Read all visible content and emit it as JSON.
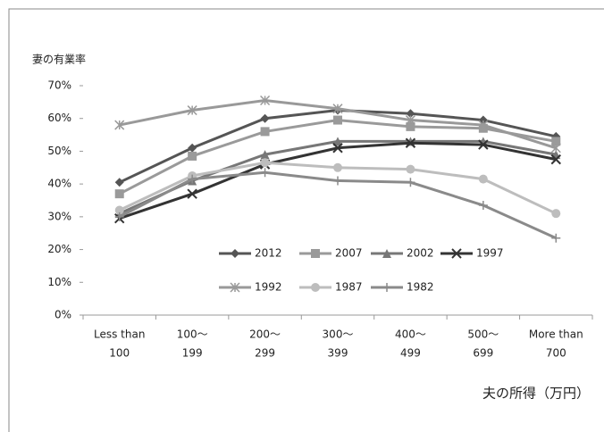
{
  "chart_data": {
    "type": "line",
    "y_label": "妻の有業率",
    "x_label": "夫の所得（万円）",
    "categories": [
      [
        "Less than",
        "100"
      ],
      [
        "100～",
        "199"
      ],
      [
        "200～",
        "299"
      ],
      [
        "300～",
        "399"
      ],
      [
        "400～",
        "499"
      ],
      [
        "500～",
        "699"
      ],
      [
        "More than",
        "700"
      ]
    ],
    "ylim": [
      0,
      70
    ],
    "yticks": [
      {
        "value": 0,
        "label": "0%"
      },
      {
        "value": 10,
        "label": "10%"
      },
      {
        "value": 20,
        "label": "20%"
      },
      {
        "value": 30,
        "label": "30%"
      },
      {
        "value": 40,
        "label": "40%"
      },
      {
        "value": 50,
        "label": "50%"
      },
      {
        "value": 60,
        "label": "60%"
      },
      {
        "value": 70,
        "label": "70%"
      }
    ],
    "grid": false,
    "series": [
      {
        "name": "2012",
        "color": "#555555",
        "marker": "diamond",
        "values": [
          40.5,
          51,
          60,
          62.5,
          61.5,
          59.5,
          54.5
        ]
      },
      {
        "name": "2007",
        "color": "#9a9a9a",
        "marker": "square",
        "values": [
          37,
          48.5,
          56,
          59.5,
          57.5,
          57,
          53
        ]
      },
      {
        "name": "2002",
        "color": "#777777",
        "marker": "triangle",
        "values": [
          31,
          41,
          49,
          53,
          53,
          53,
          49
        ]
      },
      {
        "name": "1997",
        "color": "#333333",
        "marker": "x",
        "values": [
          29.5,
          37,
          46,
          51,
          52.5,
          52,
          47.5
        ]
      },
      {
        "name": "1992",
        "color": "#999999",
        "marker": "star",
        "values": [
          58,
          62.5,
          65.5,
          63,
          59.5,
          58,
          51
        ]
      },
      {
        "name": "1987",
        "color": "#bdbdbd",
        "marker": "circle",
        "values": [
          32,
          42.5,
          46.5,
          45,
          44.5,
          41.5,
          31
        ]
      },
      {
        "name": "1982",
        "color": "#8a8a8a",
        "marker": "plus",
        "values": [
          30,
          41.5,
          43.5,
          41,
          40.5,
          33.5,
          23.5
        ]
      }
    ]
  }
}
